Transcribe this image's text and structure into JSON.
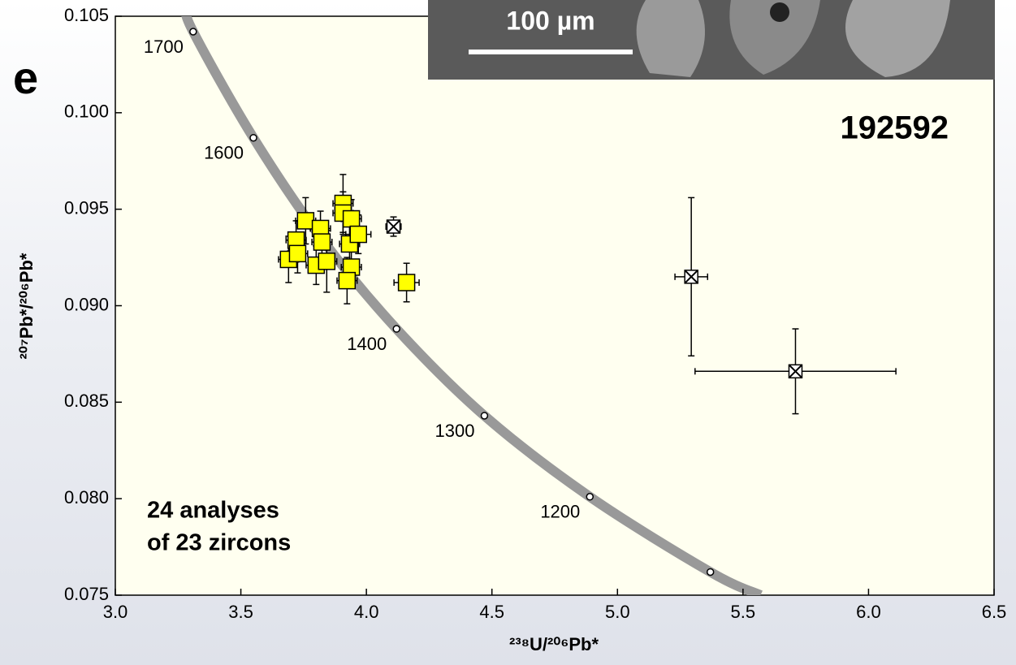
{
  "chart_data": {
    "type": "scatter",
    "title_fragment": "e",
    "sample_label": "192592",
    "note_lines": [
      "24 analyses",
      "of 23 zircons"
    ],
    "inset": {
      "scale_label": "100 µm"
    },
    "x_label": "²³⁸U/²⁰⁶Pb*",
    "y_label": "²⁰⁷Pb*/²⁰⁶Pb*",
    "xlim": [
      3.0,
      6.5
    ],
    "ylim": [
      0.075,
      0.105
    ],
    "xticks": [
      {
        "value": 3.0,
        "label": "3.0"
      },
      {
        "value": 3.5,
        "label": "3.5"
      },
      {
        "value": 4.0,
        "label": "4.0"
      },
      {
        "value": 4.5,
        "label": "4.5"
      },
      {
        "value": 5.0,
        "label": "5.0"
      },
      {
        "value": 5.5,
        "label": "5.5"
      },
      {
        "value": 6.0,
        "label": "6.0"
      },
      {
        "value": 6.5,
        "label": "6.5"
      }
    ],
    "yticks": [
      0.075,
      {
        "value": 0.08,
        "label": "0.080"
      },
      0.085,
      {
        "value": 0.09,
        "label": "0.090"
      },
      0.095,
      {
        "value": 0.1,
        "label": "0.100"
      },
      0.105
    ],
    "grid": false,
    "concordia": {
      "color": "#999999",
      "x": [
        3.28,
        3.31,
        3.55,
        3.82,
        4.12,
        4.47,
        4.89,
        5.37,
        5.57
      ],
      "values": [
        0.1055,
        0.1042,
        0.0987,
        0.0935,
        0.0888,
        0.0843,
        0.0801,
        0.0762,
        0.075
      ]
    },
    "age_markers": {
      "x": [
        3.31,
        3.55,
        3.82,
        4.12,
        4.47,
        4.89,
        5.37
      ],
      "values": [
        0.1042,
        0.0987,
        0.0935,
        0.0888,
        0.0843,
        0.0801,
        0.0762
      ],
      "labels": [
        "1700",
        "1600",
        null,
        "1400",
        "1300",
        "1200",
        null
      ]
    },
    "series": [
      {
        "marker": "square",
        "color": "#ffff00",
        "x": [
          3.758,
          3.72,
          3.69,
          3.726,
          3.8,
          3.817,
          3.823,
          3.842,
          3.907,
          3.907,
          3.94,
          3.933,
          3.968,
          3.94,
          3.923,
          4.16
        ],
        "values": [
          0.0944,
          0.0934,
          0.0924,
          0.0927,
          0.0921,
          0.094,
          0.0933,
          0.0923,
          0.0953,
          0.0948,
          0.0945,
          0.0932,
          0.0937,
          0.092,
          0.0913,
          0.0912
        ],
        "xerr": [
          0.04,
          0.04,
          0.04,
          0.04,
          0.04,
          0.04,
          0.04,
          0.04,
          0.04,
          0.04,
          0.04,
          0.04,
          0.05,
          0.04,
          0.04,
          0.05
        ],
        "yerr": [
          0.0012,
          0.001,
          0.0012,
          0.001,
          0.001,
          0.0009,
          0.001,
          0.0016,
          0.0015,
          0.0011,
          0.001,
          0.0011,
          0.001,
          0.001,
          0.0012,
          0.001
        ]
      },
      {
        "marker": "crossed-square",
        "color": "#ffffff",
        "x": [
          4.108,
          5.294,
          5.709
        ],
        "values": [
          0.0941,
          0.0915,
          0.0866
        ],
        "xerr": [
          0.03,
          0.065,
          0.4
        ],
        "yerr": [
          0.0005,
          0.0041,
          0.0022
        ]
      }
    ]
  }
}
